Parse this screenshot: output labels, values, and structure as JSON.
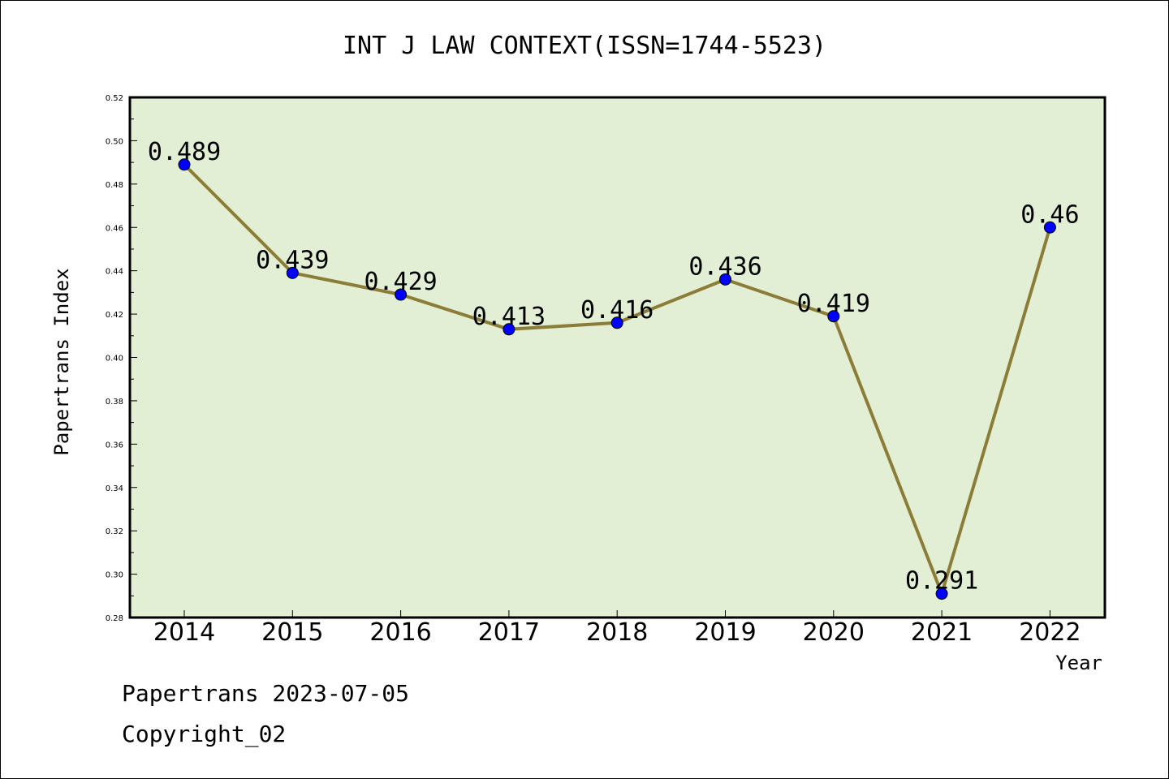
{
  "chart_data": {
    "type": "line",
    "title": "INT J LAW CONTEXT(ISSN=1744-5523)",
    "xlabel": "Year",
    "ylabel": "Papertrans Index",
    "categories": [
      "2014",
      "2015",
      "2016",
      "2017",
      "2018",
      "2019",
      "2020",
      "2021",
      "2022"
    ],
    "series": [
      {
        "values": [
          0.489,
          0.439,
          0.429,
          0.413,
          0.416,
          0.436,
          0.419,
          0.291,
          0.46
        ],
        "labels": [
          "0.489",
          "0.439",
          "0.429",
          "0.413",
          "0.416",
          "0.436",
          "0.419",
          "0.291",
          "0.46"
        ]
      }
    ],
    "ylim": [
      0.28,
      0.52
    ],
    "yticks": [
      "0.28",
      "0.30",
      "0.32",
      "0.34",
      "0.36",
      "0.38",
      "0.40",
      "0.42",
      "0.44",
      "0.46",
      "0.48",
      "0.50",
      "0.52"
    ],
    "grid": false,
    "colors": {
      "plot_background": "#e2efd4",
      "line": "#8b7d38",
      "marker": "#0000ff"
    }
  },
  "footer": {
    "line1": "Papertrans 2023-07-05",
    "line2": "Copyright_02"
  }
}
